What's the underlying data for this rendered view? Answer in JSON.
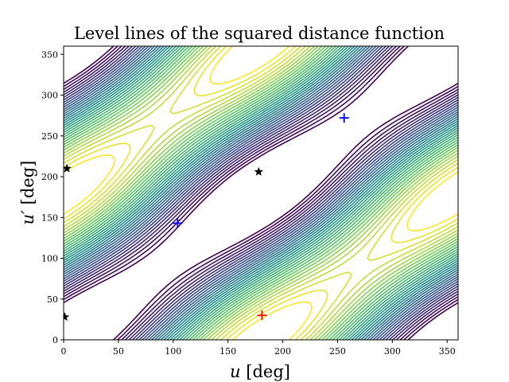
{
  "chart_data": {
    "type": "contour",
    "title": "Level lines of the squared distance function",
    "xlabel_var": "u",
    "xlabel_unit": "[deg]",
    "ylabel_var": "u′",
    "ylabel_unit": "[deg]",
    "xlim": [
      0,
      360
    ],
    "ylim": [
      0,
      360
    ],
    "xticks": [
      0,
      50,
      100,
      150,
      200,
      250,
      300,
      350
    ],
    "yticks": [
      0,
      50,
      100,
      150,
      200,
      250,
      300,
      350
    ],
    "colormap": [
      "#440154",
      "#3b528b",
      "#21918c",
      "#5ec962",
      "#fde725"
    ],
    "markers": [
      {
        "kind": "plus",
        "color": "#ff0000",
        "x": 181,
        "y": 30
      },
      {
        "kind": "plus",
        "color": "#0000ff",
        "x": 104,
        "y": 143
      },
      {
        "kind": "plus",
        "color": "#0000ff",
        "x": 256,
        "y": 272
      },
      {
        "kind": "star",
        "color": "#000000",
        "x": 178,
        "y": 206
      },
      {
        "kind": "star",
        "color": "#000000",
        "x": 3,
        "y": 210
      },
      {
        "kind": "star",
        "color": "#000000",
        "x": 1,
        "y": 28
      }
    ]
  }
}
